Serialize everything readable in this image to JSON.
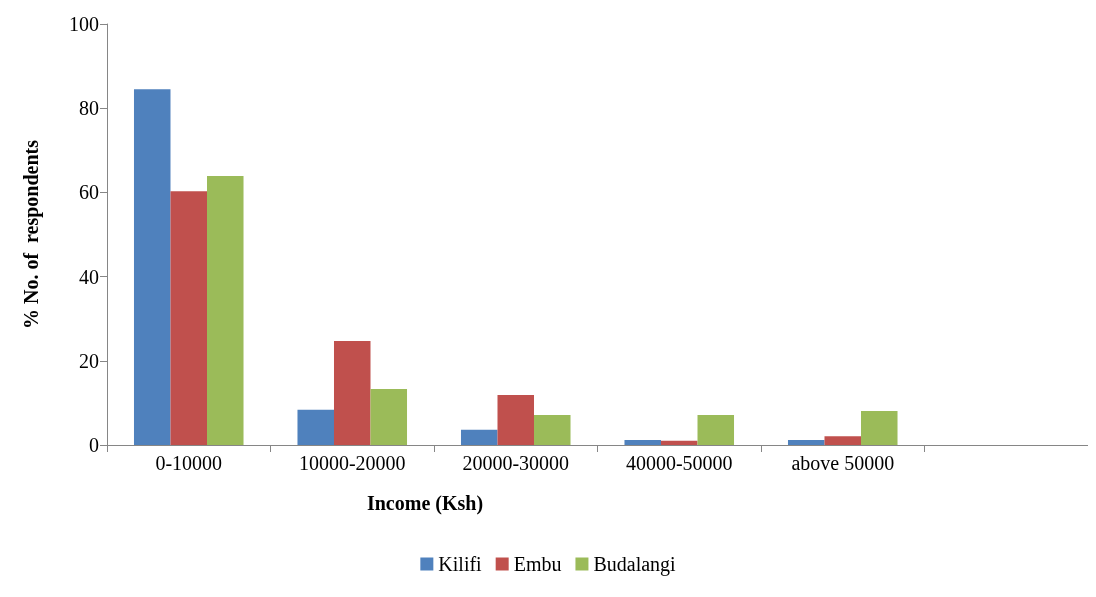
{
  "chart_data": {
    "type": "bar",
    "xlabel": "Income (Ksh)",
    "ylabel": "% No. of  respondents",
    "categories": [
      "0-10000",
      "10000-20000",
      "20000-30000",
      "40000-50000",
      "above 50000",
      null
    ],
    "series": [
      {
        "name": "Kilifi",
        "color": "#4f81bd",
        "values": [
          84.5,
          8.4,
          3.6,
          1.2,
          1.2,
          null
        ]
      },
      {
        "name": "Embu",
        "color": "#c0504d",
        "values": [
          60.3,
          24.7,
          11.9,
          1.0,
          2.1,
          null
        ]
      },
      {
        "name": "Budalangi",
        "color": "#9bbb59",
        "values": [
          63.9,
          13.3,
          7.1,
          7.1,
          8.1,
          null
        ]
      }
    ],
    "ylim": [
      0,
      100
    ],
    "yticks": [
      0,
      20,
      40,
      60,
      80,
      100
    ],
    "grid": false,
    "legend": "bottom"
  }
}
